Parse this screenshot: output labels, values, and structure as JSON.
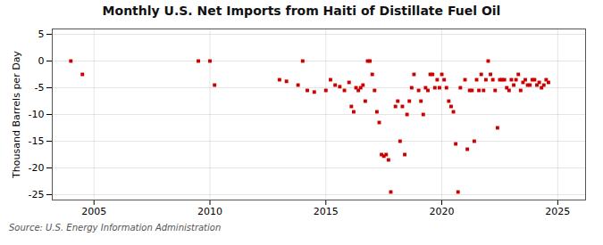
{
  "chart_data": {
    "type": "scatter",
    "title": "Monthly U.S. Net Imports from Haiti of Distillate Fuel Oil",
    "y_label": "Thousand Barrels per Day",
    "annotations": [
      "Source: U.S. Energy Information Administration"
    ],
    "color": "#cc0000",
    "marker": "square",
    "grid": true,
    "xlim": [
      2003.2,
      2026.2
    ],
    "xticks": [
      2005,
      2010,
      2015,
      2020,
      2025
    ],
    "ylim": [
      -26,
      6
    ],
    "yticks": [
      5,
      0,
      -5,
      -10,
      -15,
      -20,
      -25
    ],
    "x": [
      2004.0,
      2004.5,
      2009.5,
      2010.0,
      2010.2,
      2013.0,
      2013.3,
      2013.8,
      2014.0,
      2014.2,
      2014.5,
      2015.0,
      2015.2,
      2015.4,
      2015.6,
      2015.8,
      2016.0,
      2016.1,
      2016.2,
      2016.3,
      2016.4,
      2016.5,
      2016.6,
      2016.7,
      2016.8,
      2016.9,
      2017.0,
      2017.1,
      2017.2,
      2017.3,
      2017.4,
      2017.5,
      2017.6,
      2017.7,
      2017.8,
      2018.0,
      2018.1,
      2018.2,
      2018.3,
      2018.4,
      2018.5,
      2018.6,
      2018.7,
      2018.8,
      2019.0,
      2019.1,
      2019.2,
      2019.3,
      2019.4,
      2019.5,
      2019.6,
      2019.7,
      2019.8,
      2019.9,
      2020.0,
      2020.1,
      2020.2,
      2020.3,
      2020.4,
      2020.5,
      2020.6,
      2020.7,
      2020.8,
      2021.0,
      2021.1,
      2021.2,
      2021.3,
      2021.4,
      2021.5,
      2021.6,
      2021.7,
      2021.8,
      2021.9,
      2022.0,
      2022.1,
      2022.2,
      2022.3,
      2022.4,
      2022.5,
      2022.6,
      2022.7,
      2022.8,
      2022.9,
      2023.0,
      2023.1,
      2023.2,
      2023.3,
      2023.4,
      2023.5,
      2023.6,
      2023.7,
      2023.8,
      2023.9,
      2024.0,
      2024.1,
      2024.2,
      2024.3,
      2024.4,
      2024.5,
      2024.6
    ],
    "values": [
      0,
      -2.5,
      0,
      0,
      -4.5,
      -3.5,
      -3.8,
      -4.5,
      0,
      -5.5,
      -5.8,
      -5.5,
      -3.5,
      -4.5,
      -4.8,
      -5.5,
      -4.0,
      -8.5,
      -9.5,
      -5.0,
      -5.5,
      -5.0,
      -4.5,
      -7.5,
      0,
      0,
      -2.5,
      -5.5,
      -9.5,
      -11.5,
      -17.5,
      -17.8,
      -17.5,
      -18.5,
      -24.5,
      -8.5,
      -7.5,
      -15.0,
      -8.5,
      -17.5,
      -10.0,
      -7.5,
      -5.0,
      -2.5,
      -5.5,
      -7.5,
      -10.0,
      -5.0,
      -5.5,
      -2.5,
      -2.5,
      -5.0,
      -3.5,
      -5.0,
      -2.5,
      -3.5,
      -5.0,
      -7.5,
      -8.5,
      -9.5,
      -15.5,
      -24.5,
      -5.0,
      -3.5,
      -16.5,
      -5.5,
      -5.5,
      -15.0,
      -3.5,
      -5.5,
      -2.5,
      -5.5,
      -3.5,
      0,
      -2.5,
      -3.5,
      -5.5,
      -12.5,
      -3.5,
      -3.5,
      -3.5,
      -5.0,
      -5.5,
      -3.5,
      -4.5,
      -3.5,
      -2.5,
      -5.5,
      -4.0,
      -3.5,
      -4.5,
      -4.5,
      -3.5,
      -3.5,
      -4.5,
      -4.0,
      -5.0,
      -4.5,
      -3.5,
      -4.0
    ]
  }
}
